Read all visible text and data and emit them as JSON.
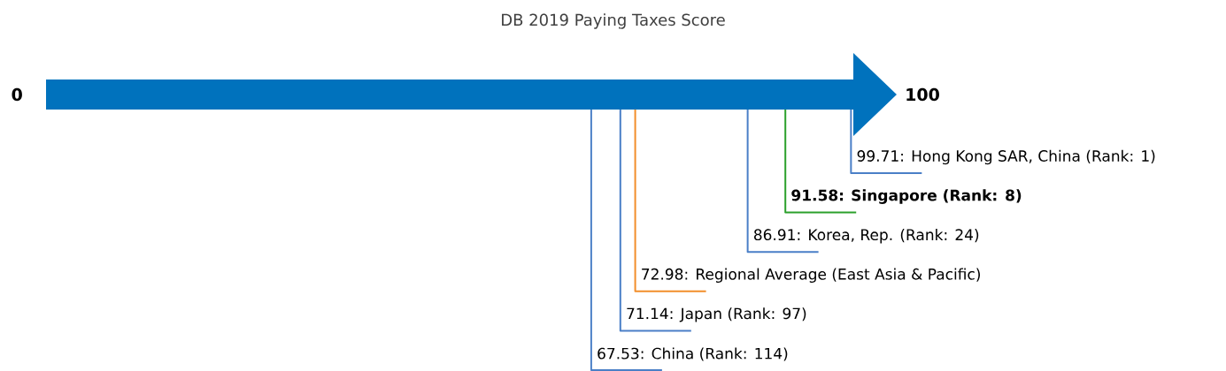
{
  "chart_data": {
    "type": "other",
    "title": "DB 2019 Paying Taxes Score",
    "color": "#0072bd",
    "annotations": [
      "0",
      "100"
    ],
    "categories": [
      "Hong Kong SAR, China (Rank: 1)",
      "**Singapore (Rank: 8)**",
      "Korea, Rep. (Rank: 24)",
      "Regional Average (East Asia & Pacific)",
      "Japan (Rank: 97)",
      "China (Rank: 114)"
    ],
    "values": [
      99.71,
      91.58,
      86.91,
      72.98,
      71.14,
      67.53
    ],
    "value_labels": [
      "99.71:",
      "**91.58:**",
      "86.91:",
      "72.98:",
      "71.14:",
      "67.53:"
    ],
    "colors": [
      "#4a7fc7",
      "#2ca02c",
      "#4a7fc7",
      "#f28e2b",
      "#4a7fc7",
      "#4a7fc7"
    ]
  }
}
